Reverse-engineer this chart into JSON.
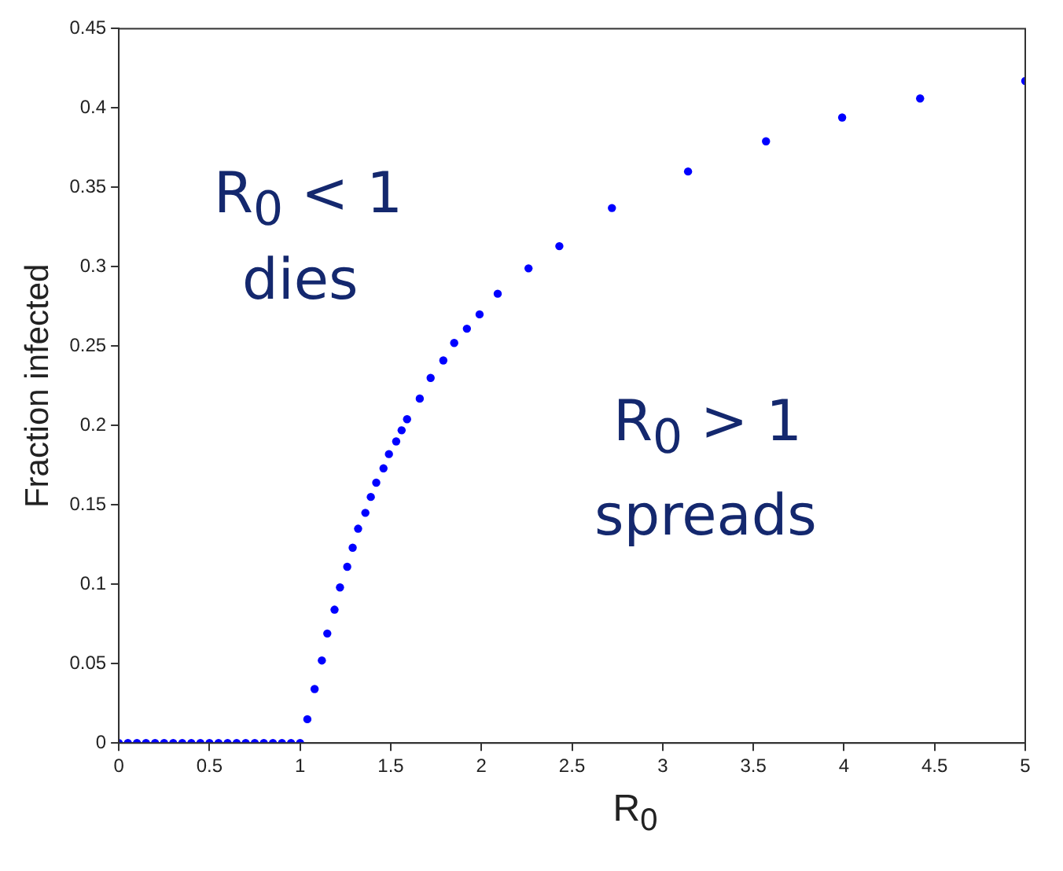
{
  "chart_data": {
    "type": "scatter",
    "xlabel": "R$_{0}$",
    "ylabel": "Fraction infected",
    "annotations": [
      "R$_{0}$ < 1",
      "dies",
      "R$_{0}$ > 1",
      "spreads"
    ],
    "xlim": [
      0,
      5
    ],
    "ylim": [
      0,
      0.45
    ],
    "xticks": [
      0,
      0.5,
      1,
      1.5,
      2,
      2.5,
      3,
      3.5,
      4,
      4.5,
      5
    ],
    "yticks": [
      0,
      0.05,
      0.1,
      0.15,
      0.2,
      0.25,
      0.3,
      0.35,
      0.4,
      0.45
    ],
    "grid": false,
    "legend": false,
    "marker": "circle",
    "series": [
      {
        "color": "#0000ff",
        "x": [
          0,
          0.05,
          0.1,
          0.15,
          0.2,
          0.25,
          0.3,
          0.35,
          0.4,
          0.45,
          0.5,
          0.55,
          0.6,
          0.65,
          0.7,
          0.75,
          0.8,
          0.85,
          0.9,
          0.95,
          1,
          1.04,
          1.08,
          1.12,
          1.15,
          1.19,
          1.22,
          1.26,
          1.29,
          1.32,
          1.36,
          1.39,
          1.42,
          1.46,
          1.49,
          1.53,
          1.56,
          1.59,
          1.66,
          1.72,
          1.79,
          1.85,
          1.92,
          1.99,
          2.09,
          2.26,
          2.43,
          2.72,
          3.14,
          3.57,
          3.99,
          4.42,
          5
        ],
        "values": [
          0,
          0,
          0,
          0,
          0,
          0,
          0,
          0,
          0,
          0,
          0,
          0,
          0,
          0,
          0,
          0,
          0,
          0,
          0,
          0,
          0,
          0.015,
          0.034,
          0.052,
          0.069,
          0.084,
          0.098,
          0.111,
          0.123,
          0.135,
          0.145,
          0.155,
          0.164,
          0.173,
          0.182,
          0.19,
          0.197,
          0.204,
          0.217,
          0.23,
          0.241,
          0.252,
          0.261,
          0.27,
          0.283,
          0.299,
          0.313,
          0.337,
          0.36,
          0.379,
          0.394,
          0.406,
          0.417
        ]
      }
    ]
  }
}
